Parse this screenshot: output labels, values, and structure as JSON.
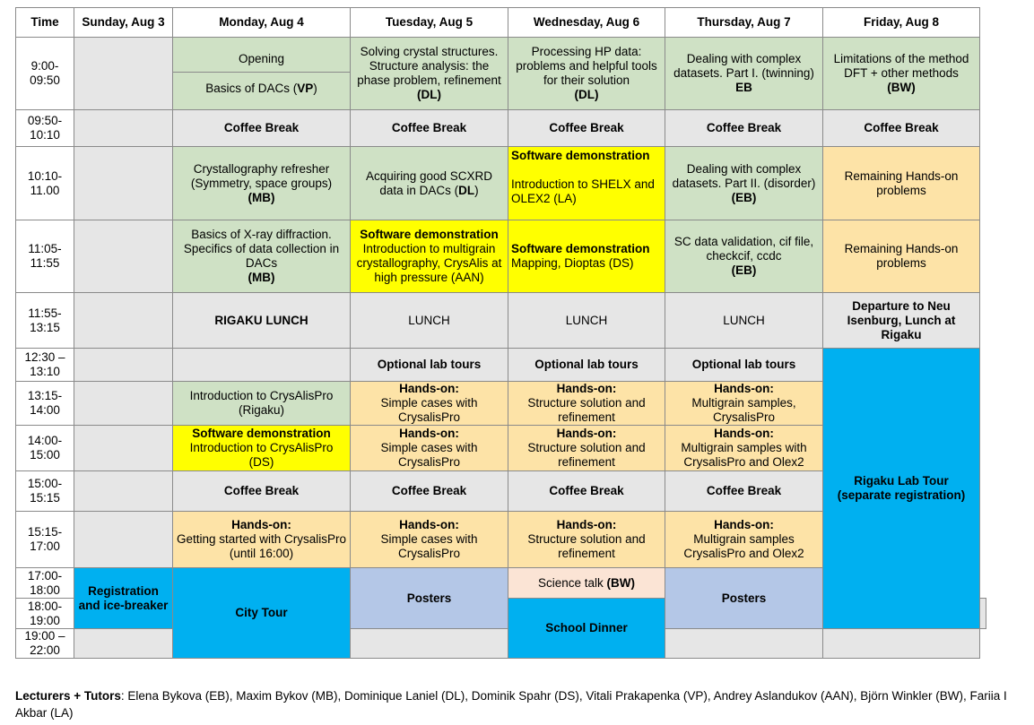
{
  "headers": [
    "Time",
    "Sunday, Aug 3",
    "Monday, Aug 4",
    "Tuesday, Aug 5",
    "Wednesday, Aug 6",
    "Thursday, Aug 7",
    "Friday, Aug 8"
  ],
  "times": {
    "t1": "9:00-\n09:50",
    "t2": "09:50-\n10:10",
    "t3": "10:10-\n11.00",
    "t4": "11:05-\n11:55",
    "t5": "11:55-\n13:15",
    "t6": "12:30 –\n13:10",
    "t7": "13:15-\n14:00",
    "t8": "14:00-\n15:00",
    "t9": "15:00-\n15:15",
    "t10": "15:15-\n17:00",
    "t11a": "17:00-\n18:00",
    "t11b": "18:00-\n19:00",
    "t12": "19:00 –\n22:00"
  },
  "cells": {
    "mon_opening": "Opening",
    "mon_dacs_a": "Basics of DACs (",
    "mon_dacs_b": "VP",
    "mon_dacs_c": ")",
    "tue_solving_a": "Solving crystal structures. Structure analysis: the phase problem, refinement",
    "tue_solving_b": "(DL)",
    "wed_hp_a": "Processing HP data: problems and helpful tools for their solution",
    "wed_hp_b": "(DL)",
    "thu_complex1_a": "Dealing with complex datasets. Part I. (twinning)",
    "thu_complex1_b": "EB",
    "fri_limit_a": "Limitations of the method DFT + other methods",
    "fri_limit_b": "(BW)",
    "coffee": "Coffee Break",
    "mon_cryst_a": "Crystallography refresher (Symmetry, space groups)",
    "mon_cryst_b": "(MB)",
    "tue_acq_a": "Acquiring good SCXRD data in DACs (",
    "tue_acq_b": "DL",
    "tue_acq_c": ")",
    "wed_sw1_a": "Software demonstration",
    "wed_sw1_b": "Introduction to SHELX and OLEX2 (LA)",
    "thu_complex2_a": "Dealing with complex datasets. Part II. (disorder)",
    "thu_complex2_b": "(EB)",
    "fri_remaining": "Remaining Hands-on problems",
    "mon_xray_a": "Basics of X-ray diffraction. Specifics of data collection in DACs",
    "mon_xray_b": "(MB)",
    "tue_sw_a": "Software demonstration",
    "tue_sw_b": "Introduction to multigrain crystallography, CrysAlis at high pressure (AAN)",
    "wed_sw2_a": "Software demonstration",
    "wed_sw2_b": "Mapping, Dioptas (DS)",
    "thu_sc_a": "SC data validation, cif file, checkcif, ccdc",
    "thu_sc_b": "(EB)",
    "fri_remaining2": "Remaining Hands-on problems",
    "mon_lunch": "RIGAKU LUNCH",
    "lunch": "LUNCH",
    "fri_departure": "Departure to Neu Isenburg, Lunch at Rigaku",
    "optional": "Optional lab tours",
    "fri_rigaku_tour": "Rigaku Lab Tour (separate registration)",
    "mon_crysalis": "Introduction to CrysAlisPro (Rigaku)",
    "handson": "Hands-on:",
    "tue_simple": "Simple cases with CrysalisPro",
    "wed_struct": "Structure solution and refinement",
    "thu_multi1": "Multigrain samples, CrysalisPro",
    "mon_sw3_a": "Software demonstration",
    "mon_sw3_b": "Introduction to CrysAlisPro (DS)",
    "thu_multi2": "Multigrain samples with CrysalisPro and Olex2",
    "mon_getting": "Getting started with CrysalisPro (until 16:00)",
    "thu_multi3": "Multigrain samples CrysalisPro and Olex2",
    "sun_reg": "Registration and ice-breaker",
    "mon_city": "City Tour",
    "posters": "Posters",
    "wed_science_a": "Science talk ",
    "wed_science_b": "(BW)",
    "wed_dinner": "School Dinner"
  },
  "footer": {
    "label": "Lecturers + Tutors",
    "text": ": Elena Bykova (EB), Maxim Bykov (MB), Dominique Laniel (DL), Dominik Spahr (DS), Vitali Prakapenka (VP), Andrey Aslandukov (AAN), Björn Winkler (BW), Fariia I Akbar (LA)"
  },
  "colors": {
    "green": "#cfe1c5",
    "grey": "#e6e6e6",
    "yellow": "#ffff00",
    "orange": "#fde3a7",
    "blue": "#00b0f0",
    "light_blue": "#b4c7e7",
    "pink": "#fbe4d5"
  }
}
